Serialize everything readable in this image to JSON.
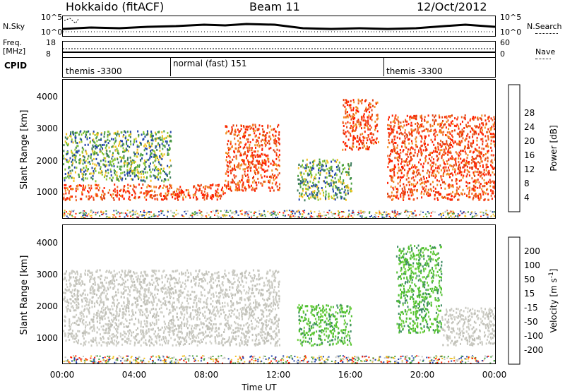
{
  "header": {
    "title_left": "Hokkaido (fitACF)",
    "title_center": "Beam 11",
    "title_right": "12/Oct/2012"
  },
  "top_panels": {
    "nsky_label": "N.Sky",
    "nsearch_label": "N.Search",
    "nsky_ticks": [
      "10^5",
      "10^0"
    ],
    "nsky_right_ticks": [
      "10^5",
      "10^0"
    ],
    "freq_label_1": "Freq.",
    "freq_label_2": "[MHz]",
    "freq_ticks": [
      "18",
      "8"
    ],
    "nave_label": "Nave",
    "nave_ticks": [
      "60",
      "0"
    ],
    "cpid_label": "CPID",
    "cpid_segments": [
      {
        "label": "themis -3300",
        "start_hour": 0
      },
      {
        "label": "normal (fast) 151",
        "start_hour": 6
      },
      {
        "label": "themis -3300",
        "start_hour": 18
      }
    ]
  },
  "chart_data": [
    {
      "type": "heatmap",
      "title": "",
      "quantity": "Power",
      "xlabel": "Time UT",
      "ylabel": "Slant Range [km]",
      "xlim_hours": [
        0,
        24
      ],
      "ylim_km": [
        200,
        4600
      ],
      "y_ticks": [
        "1000",
        "2000",
        "3000",
        "4000"
      ],
      "colorbar_label": "Power [dB]",
      "colorbar_ticks": [
        "4",
        "8",
        "12",
        "16",
        "20",
        "24",
        "28"
      ],
      "colorbar_colors": [
        "#0000ff",
        "#2244aa",
        "#3a7a5a",
        "#4aa040",
        "#88c830",
        "#f0c020",
        "#f09020",
        "#f06020",
        "#ff2000"
      ],
      "echo_regions": [
        {
          "t": [
            0,
            9
          ],
          "range_km": [
            800,
            1300
          ],
          "level": "high"
        },
        {
          "t": [
            0,
            6
          ],
          "range_km": [
            1400,
            3000
          ],
          "level": "moderate"
        },
        {
          "t": [
            9,
            12
          ],
          "range_km": [
            1100,
            3200
          ],
          "level": "high"
        },
        {
          "t": [
            13,
            16
          ],
          "range_km": [
            800,
            2100
          ],
          "level": "moderate"
        },
        {
          "t": [
            15.5,
            17.5
          ],
          "range_km": [
            2400,
            4000
          ],
          "level": "high"
        },
        {
          "t": [
            18,
            24
          ],
          "range_km": [
            800,
            3500
          ],
          "level": "high"
        }
      ]
    },
    {
      "type": "heatmap",
      "title": "",
      "quantity": "Velocity",
      "xlabel": "Time UT",
      "ylabel": "Slant Range [km]",
      "xlim_hours": [
        0,
        24
      ],
      "ylim_km": [
        200,
        4600
      ],
      "y_ticks": [
        "1000",
        "2000",
        "3000",
        "4000"
      ],
      "colorbar_label": "Velocity [m s^-1]",
      "colorbar_ticks": [
        "200",
        "100",
        "50",
        "15",
        "-15",
        "-50",
        "-100",
        "-200"
      ],
      "colorbar_colors": [
        "#2030a0",
        "#3a6aa0",
        "#3a8a60",
        "#50c030",
        "#c8c8c0",
        "#f0b040",
        "#f08020",
        "#f04020",
        "#ff0000"
      ],
      "echo_regions": [
        {
          "t": [
            0,
            12
          ],
          "range_km": [
            800,
            3200
          ],
          "velocity": "near zero (grey)"
        },
        {
          "t": [
            13,
            16
          ],
          "range_km": [
            800,
            2100
          ],
          "velocity": "positive (green)"
        },
        {
          "t": [
            18.5,
            21
          ],
          "range_km": [
            1200,
            4000
          ],
          "velocity": "positive (green)"
        },
        {
          "t": [
            21,
            24
          ],
          "range_km": [
            800,
            2000
          ],
          "velocity": "near zero (grey)"
        }
      ]
    }
  ],
  "x_ticks": [
    "00:00",
    "04:00",
    "08:00",
    "12:00",
    "16:00",
    "20:00",
    "00:00"
  ],
  "x_axis_label": "Time UT",
  "power_axis_label": "Power [dB]",
  "velocity_axis_label": "Velocity [m s",
  "velocity_axis_sup": "-1",
  "velocity_axis_close": "]"
}
